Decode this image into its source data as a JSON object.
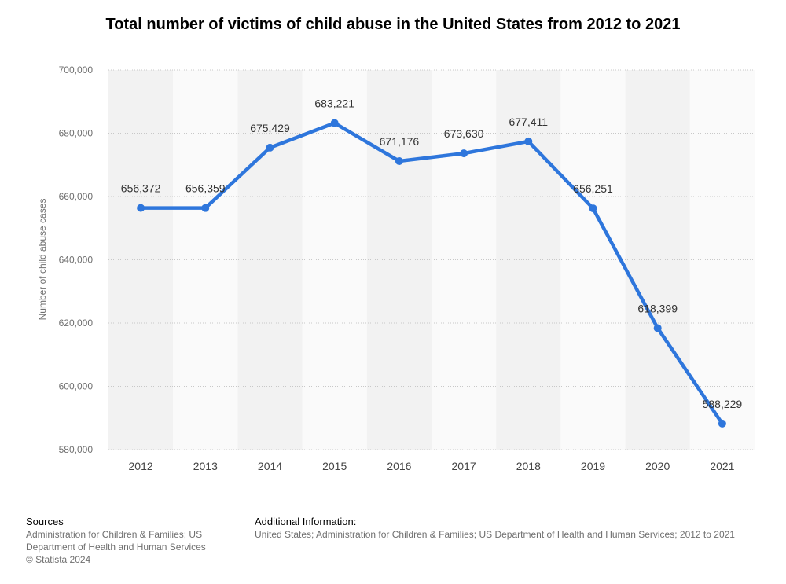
{
  "chart_data": {
    "type": "line",
    "title": "Total number of victims of child abuse in the United States from 2012 to 2021",
    "ylabel": "Number of child abuse cases",
    "xlabel": "",
    "categories": [
      "2012",
      "2013",
      "2014",
      "2015",
      "2016",
      "2017",
      "2018",
      "2019",
      "2020",
      "2021"
    ],
    "series": [
      {
        "values": [
          656372,
          656359,
          675429,
          683221,
          671176,
          673630,
          677411,
          656251,
          618399,
          588229
        ]
      }
    ],
    "data_labels": [
      "656,372",
      "656,359",
      "675,429",
      "683,221",
      "671,176",
      "673,630",
      "677,411",
      "656,251",
      "618,399",
      "588,229"
    ],
    "ylim": [
      580000,
      700000
    ],
    "yticks": [
      580000,
      600000,
      620000,
      640000,
      660000,
      680000,
      700000
    ],
    "ytick_labels": [
      "580,000",
      "600,000",
      "620,000",
      "640,000",
      "660,000",
      "680,000",
      "700,000"
    ],
    "grid": true,
    "line_color": "#2e76dc"
  },
  "footer": {
    "sources_title": "Sources",
    "sources_line1": "Administration for Children & Families; US",
    "sources_line2": "Department of Health and Human Services",
    "sources_line3": "© Statista 2024",
    "additional_title": "Additional Information:",
    "additional_text": "United States; Administration for Children & Families; US Department of Health and Human Services; 2012 to 2021"
  }
}
